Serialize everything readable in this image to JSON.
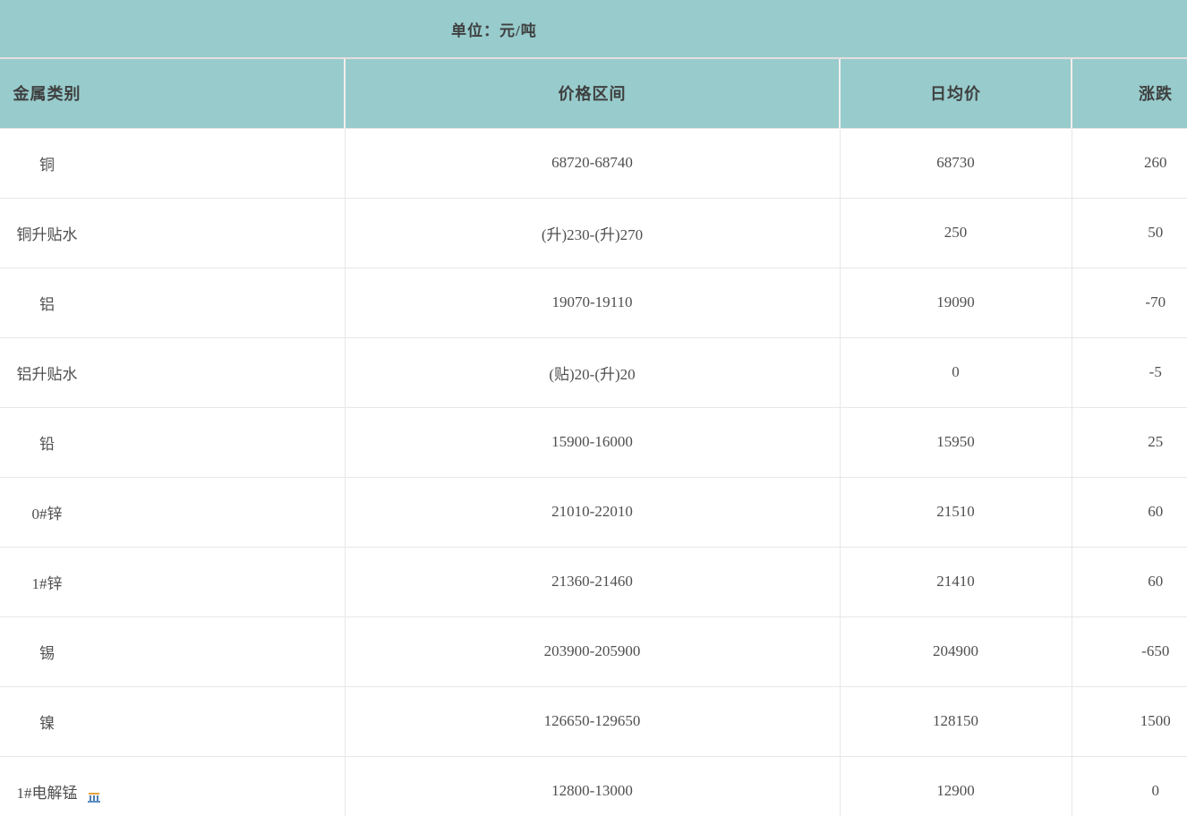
{
  "banner": {
    "unit_label": "单位：元/吨"
  },
  "chart_data": {
    "type": "table",
    "title": "单位：元/吨",
    "columns": [
      "金属类别",
      "价格区间",
      "日均价",
      "涨跌"
    ],
    "rows": [
      {
        "category": "铜",
        "range": "68720-68740",
        "avg": "68730",
        "change": "260"
      },
      {
        "category": "铜升贴水",
        "range": "(升)230-(升)270",
        "avg": "250",
        "change": "50"
      },
      {
        "category": "铝",
        "range": "19070-19110",
        "avg": "19090",
        "change": "-70"
      },
      {
        "category": "铝升贴水",
        "range": "(贴)20-(升)20",
        "avg": "0",
        "change": "-5"
      },
      {
        "category": "铅",
        "range": "15900-16000",
        "avg": "15950",
        "change": "25"
      },
      {
        "category": "0#锌",
        "range": "21010-22010",
        "avg": "21510",
        "change": "60"
      },
      {
        "category": "1#锌",
        "range": "21360-21460",
        "avg": "21410",
        "change": "60"
      },
      {
        "category": "锡",
        "range": "203900-205900",
        "avg": "204900",
        "change": "-650"
      },
      {
        "category": "镍",
        "range": "126650-129650",
        "avg": "128150",
        "change": "1500"
      },
      {
        "category": "1#电解锰",
        "range": "12800-13000",
        "avg": "12900",
        "change": "0"
      }
    ]
  },
  "colors": {
    "header_teal": "#98cbcc",
    "header_text": "#3f4040",
    "body_text": "#4f4f4f",
    "grid_line": "#e7e7e7",
    "background": "#ffffff"
  }
}
